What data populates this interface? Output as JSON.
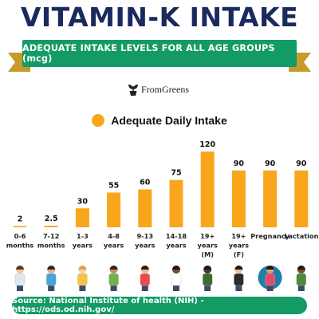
{
  "title": "VITAMIN-K INTAKE",
  "subtitle": "ADEQUATE INTAKE LEVELS FOR ALL AGE GROUPS (mcg)",
  "brand": {
    "name": "FromGreens",
    "icon": "plant-pot-icon"
  },
  "legend": {
    "label": "Adequate Daily Intake",
    "color": "#f9a61c"
  },
  "colors": {
    "bar": "#f9a61c",
    "accent": "#149a64",
    "title": "#1b2a5e",
    "ribbon_tail": "#c79a2c"
  },
  "chart_data": {
    "type": "bar",
    "categories": [
      [
        "0-6",
        "months"
      ],
      [
        "7-12",
        "months"
      ],
      [
        "1-3",
        "years"
      ],
      [
        "4-8",
        "years"
      ],
      [
        "9-13",
        "years"
      ],
      [
        "14-18",
        "years"
      ],
      [
        "19+",
        "years",
        "(M)"
      ],
      [
        "19+",
        "years",
        "(F)"
      ],
      [
        "Pregnancy"
      ],
      [
        "Lactation"
      ]
    ],
    "values": [
      2,
      2.5,
      30,
      55,
      60,
      75,
      120,
      90,
      90,
      90
    ],
    "value_labels": [
      "2",
      "2.5",
      "30",
      "55",
      "60",
      "75",
      "120",
      "90",
      "90",
      "90"
    ],
    "ylim": [
      0,
      120
    ],
    "grid": false,
    "legend_position": "top-center"
  },
  "icons": [
    "mother-with-newborn-icon",
    "mother-holding-baby-icon",
    "toddler-icon",
    "child-boy-icon",
    "child-girl-icon",
    "teen-girl-icon",
    "adult-man-icon",
    "adult-woman-icon",
    "pregnant-woman-icon",
    "mother-with-baby-icon"
  ],
  "footer": "Source: National Institute of health (NIH) - https://ods.od.nih.gov/"
}
